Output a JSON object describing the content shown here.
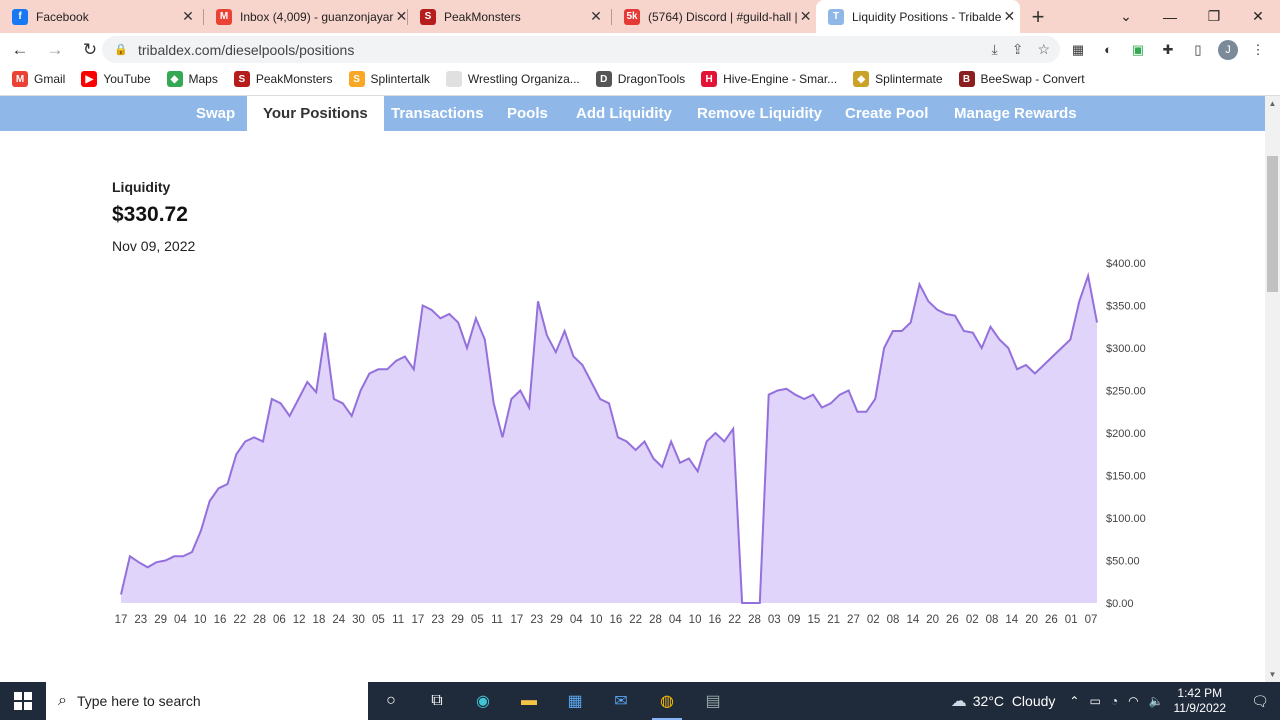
{
  "browser": {
    "tabs": [
      {
        "title": "Facebook",
        "icon": "facebook-icon",
        "color": "#1877f2",
        "glyph": "f"
      },
      {
        "title": "Inbox (4,009) - guanzonjayar",
        "icon": "gmail-icon",
        "color": "#ea4335",
        "glyph": "M"
      },
      {
        "title": "PeakMonsters",
        "icon": "peakmonsters-icon",
        "color": "#b71c1c",
        "glyph": "S"
      },
      {
        "title": "(5764) Discord | #guild-hall |",
        "icon": "discord-icon",
        "color": "#e53935",
        "glyph": "5k"
      },
      {
        "title": "Liquidity Positions - Tribalde",
        "icon": "tribaldex-icon",
        "color": "#8fb8e8",
        "glyph": "T"
      }
    ],
    "url": "tribaldex.com/dieselpools/positions",
    "bookmarks": [
      {
        "label": "Gmail",
        "icon": "gmail-icon",
        "color": "#ea4335",
        "glyph": "M"
      },
      {
        "label": "YouTube",
        "icon": "youtube-icon",
        "color": "#ff0000",
        "glyph": "▶"
      },
      {
        "label": "Maps",
        "icon": "maps-icon",
        "color": "#34a853",
        "glyph": "◆"
      },
      {
        "label": "PeakMonsters",
        "icon": "peakmonsters-icon",
        "color": "#b71c1c",
        "glyph": "S"
      },
      {
        "label": "Splintertalk",
        "icon": "splintertalk-icon",
        "color": "#f9a825",
        "glyph": "S"
      },
      {
        "label": "Wrestling Organiza...",
        "icon": "wrestling-icon",
        "color": "#e0e0e0",
        "glyph": ""
      },
      {
        "label": "DragonTools",
        "icon": "dragontools-icon",
        "color": "#555555",
        "glyph": "D"
      },
      {
        "label": "Hive-Engine - Smar...",
        "icon": "hive-engine-icon",
        "color": "#e31337",
        "glyph": "H"
      },
      {
        "label": "Splintermate",
        "icon": "splintermate-icon",
        "color": "#c9a227",
        "glyph": "◆"
      },
      {
        "label": "BeeSwap - Convert",
        "icon": "beeswap-icon",
        "color": "#8b1e1e",
        "glyph": "B"
      }
    ]
  },
  "nav": {
    "items": [
      {
        "label": "Swap",
        "x": 196
      },
      {
        "label": "Your Positions",
        "x": 247,
        "active": true
      },
      {
        "label": "Transactions",
        "x": 391
      },
      {
        "label": "Pools",
        "x": 507
      },
      {
        "label": "Add Liquidity",
        "x": 576
      },
      {
        "label": "Remove Liquidity",
        "x": 697
      },
      {
        "label": "Create Pool",
        "x": 845
      },
      {
        "label": "Manage Rewards",
        "x": 954
      }
    ]
  },
  "liquidity": {
    "label": "Liquidity",
    "value": "$330.72",
    "date": "Nov 09, 2022"
  },
  "chart_data": {
    "type": "area",
    "title": "",
    "xlabel": "",
    "ylabel": "",
    "ylim": [
      0,
      400
    ],
    "y_ticks": [
      "$0.00",
      "$50.00",
      "$100.00",
      "$150.00",
      "$200.00",
      "$250.00",
      "$300.00",
      "$350.00",
      "$400.00"
    ],
    "x_ticks": [
      "17",
      "23",
      "29",
      "04",
      "10",
      "16",
      "22",
      "28",
      "06",
      "12",
      "18",
      "24",
      "30",
      "05",
      "11",
      "17",
      "23",
      "29",
      "05",
      "11",
      "17",
      "23",
      "29",
      "04",
      "10",
      "16",
      "22",
      "28",
      "04",
      "10",
      "16",
      "22",
      "28",
      "03",
      "09",
      "15",
      "21",
      "27",
      "02",
      "08",
      "14",
      "20",
      "26",
      "02",
      "08",
      "14",
      "20",
      "26",
      "01",
      "07"
    ],
    "fill_color": "#e0d4fb",
    "line_color": "#9370db",
    "values": [
      10,
      55,
      48,
      42,
      48,
      50,
      55,
      55,
      60,
      85,
      120,
      135,
      140,
      175,
      190,
      195,
      190,
      240,
      235,
      220,
      240,
      260,
      248,
      318,
      240,
      235,
      220,
      250,
      270,
      275,
      275,
      285,
      290,
      275,
      350,
      345,
      335,
      340,
      330,
      300,
      335,
      310,
      235,
      195,
      240,
      250,
      230,
      355,
      315,
      295,
      320,
      290,
      280,
      260,
      240,
      235,
      195,
      190,
      180,
      190,
      170,
      160,
      190,
      165,
      170,
      155,
      190,
      200,
      190,
      205,
      0,
      0,
      0,
      245,
      250,
      252,
      245,
      240,
      245,
      230,
      235,
      245,
      250,
      225,
      225,
      240,
      300,
      320,
      320,
      330,
      375,
      355,
      345,
      340,
      338,
      320,
      318,
      300,
      325,
      310,
      300,
      275,
      280,
      270,
      280,
      290,
      300,
      310,
      355,
      385,
      330
    ]
  }
}
